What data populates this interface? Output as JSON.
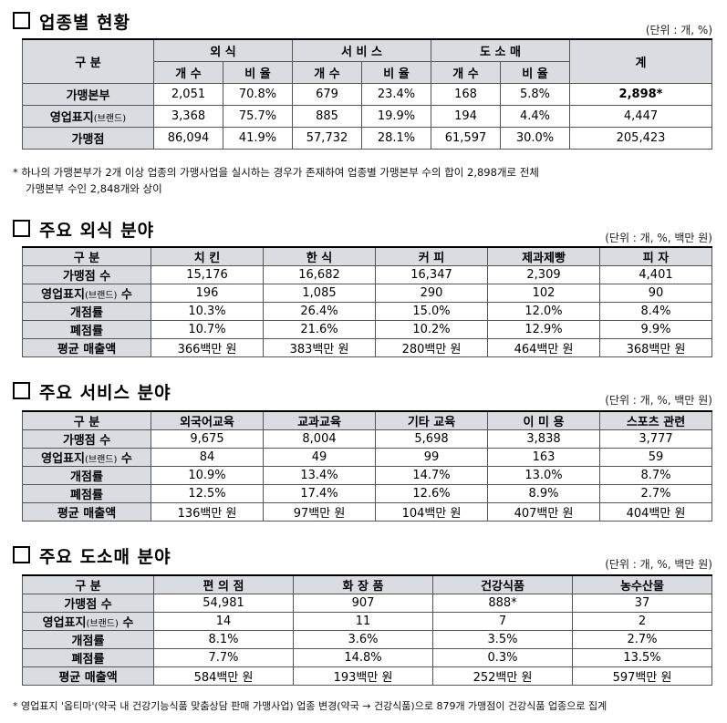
{
  "sec1": {
    "title": "업종별 현황",
    "unit": "(단위 : 개, %)",
    "col_label": "구 분",
    "groups": [
      "외 식",
      "서 비 스",
      "도 소 매"
    ],
    "sub": [
      "개 수",
      "비 율"
    ],
    "total_label": "계",
    "rows": [
      {
        "label": "가맹본부",
        "cells": [
          "2,051",
          "70.8%",
          "679",
          "23.4%",
          "168",
          "5.8%"
        ],
        "total": "2,898*"
      },
      {
        "label": "영업표지",
        "label_small": "(브랜드)",
        "cells": [
          "3,368",
          "75.7%",
          "885",
          "19.9%",
          "194",
          "4.4%"
        ],
        "total": "4,447"
      },
      {
        "label": "가맹점",
        "cells": [
          "86,094",
          "41.9%",
          "57,732",
          "28.1%",
          "61,597",
          "30.0%"
        ],
        "total": "205,423"
      }
    ],
    "note_line1": "* 하나의 가맹본부가 2개 이상 업종의 가맹사업을 실시하는 경우가 존재하여 업종별 가맹본부 수의 합이 2,898개로 전체",
    "note_line2": "가맹본부 수인 2,848개와 상이"
  },
  "sec2": {
    "title": "주요 외식 분야",
    "unit": "(단위 : 개, %, 백만 원)",
    "col_label": "구 분",
    "headers": [
      "치 킨",
      "한 식",
      "커 피",
      "제과제빵",
      "피 자"
    ],
    "rows": [
      {
        "label": "가맹점 수",
        "cells": [
          "15,176",
          "16,682",
          "16,347",
          "2,309",
          "4,401"
        ]
      },
      {
        "label": "영업표지",
        "label_small": "(브랜드)",
        "label_tail": " 수",
        "cells": [
          "196",
          "1,085",
          "290",
          "102",
          "90"
        ]
      },
      {
        "label": "개점률",
        "cells": [
          "10.3%",
          "26.4%",
          "15.0%",
          "12.0%",
          "8.4%"
        ]
      },
      {
        "label": "폐점률",
        "cells": [
          "10.7%",
          "21.6%",
          "10.2%",
          "12.9%",
          "9.9%"
        ]
      },
      {
        "label": "평균 매출액",
        "cells": [
          "366백만 원",
          "383백만 원",
          "280백만 원",
          "464백만 원",
          "368백만 원"
        ]
      }
    ]
  },
  "sec3": {
    "title": "주요 서비스 분야",
    "unit": "(단위 : 개, %, 백만 원)",
    "col_label": "구 분",
    "headers": [
      "외국어교육",
      "교과교육",
      "기타 교육",
      "이 미 용",
      "스포츠 관련"
    ],
    "rows": [
      {
        "label": "가맹점 수",
        "cells": [
          "9,675",
          "8,004",
          "5,698",
          "3,838",
          "3,777"
        ]
      },
      {
        "label": "영업표지",
        "label_small": "(브랜드)",
        "label_tail": " 수",
        "cells": [
          "84",
          "49",
          "99",
          "163",
          "59"
        ]
      },
      {
        "label": "개점률",
        "cells": [
          "10.9%",
          "13.4%",
          "14.7%",
          "13.0%",
          "8.7%"
        ]
      },
      {
        "label": "폐점률",
        "cells": [
          "12.5%",
          "17.4%",
          "12.6%",
          "8.9%",
          "2.7%"
        ]
      },
      {
        "label": "평균 매출액",
        "cells": [
          "136백만 원",
          "97백만 원",
          "104백만 원",
          "407백만 원",
          "404백만 원"
        ]
      }
    ]
  },
  "sec4": {
    "title": "주요 도소매 분야",
    "unit": "(단위 : 개, %, 백만 원)",
    "col_label": "구 분",
    "headers": [
      "편 의 점",
      "화 장 품",
      "건강식품",
      "농수산물"
    ],
    "rows": [
      {
        "label": "가맹점 수",
        "cells": [
          "54,981",
          "907",
          "888*",
          "37"
        ]
      },
      {
        "label": "영업표지",
        "label_small": "(브랜드)",
        "label_tail": " 수",
        "cells": [
          "14",
          "11",
          "7",
          "2"
        ]
      },
      {
        "label": "개점률",
        "cells": [
          "8.1%",
          "3.6%",
          "3.5%",
          "2.7%"
        ]
      },
      {
        "label": "폐점률",
        "cells": [
          "7.7%",
          "14.8%",
          "0.3%",
          "13.5%"
        ]
      },
      {
        "label": "평균 매출액",
        "cells": [
          "584백만 원",
          "193백만 원",
          "252백만 원",
          "597백만 원"
        ]
      }
    ],
    "note": "* 영업표지 '옵티마'(약국 내 건강기능식품 맞춤상담 판매 가맹사업) 업종 변경(약국 → 건강식품)으로 879개 가맹점이 건강식품 업종으로 집계"
  }
}
